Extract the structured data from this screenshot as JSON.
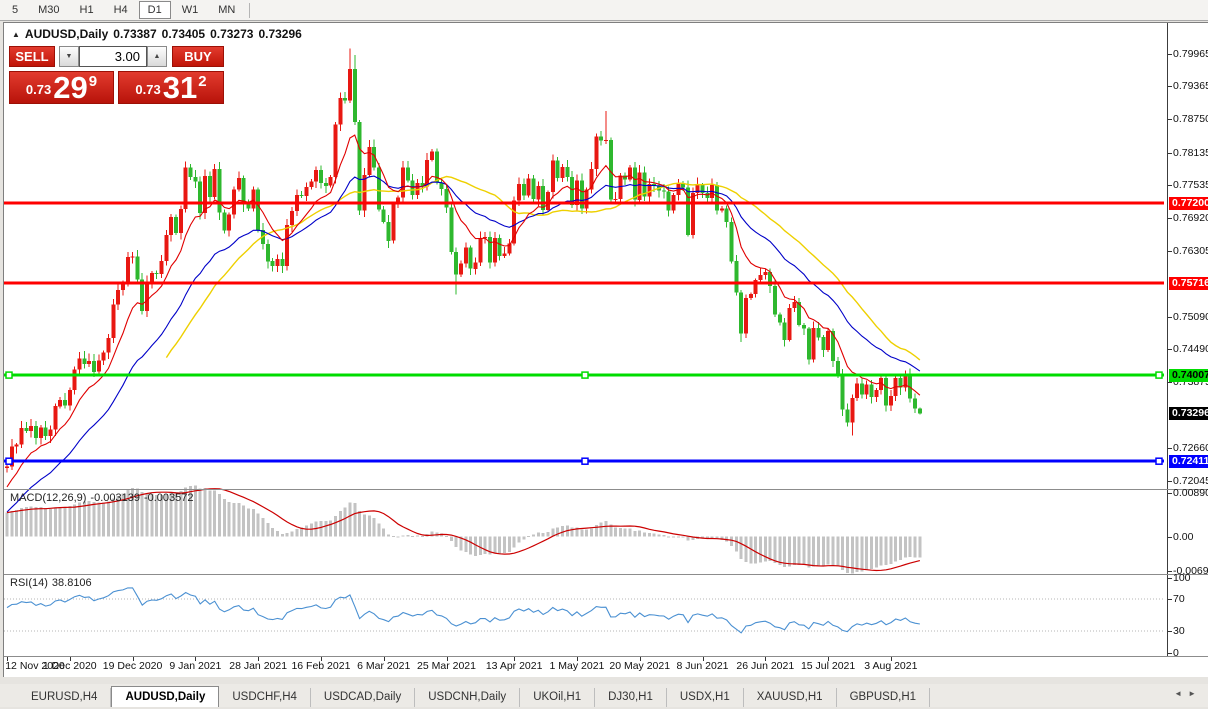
{
  "toolbar": {
    "timeframes": [
      "5",
      "M30",
      "H1",
      "H4",
      "D1",
      "W1",
      "MN"
    ],
    "active": "D1"
  },
  "header": {
    "collapse_icon": "▲",
    "symbol": "AUDUSD,Daily",
    "open": "0.73387",
    "high": "0.73405",
    "low": "0.73273",
    "close": "0.73296"
  },
  "trade_panel": {
    "sell_label": "SELL",
    "buy_label": "BUY",
    "volume": "3.00",
    "sell_price": {
      "prefix": "0.73",
      "big": "29",
      "sup": "9"
    },
    "buy_price": {
      "prefix": "0.73",
      "big": "31",
      "sup": "2"
    }
  },
  "chart_data": [
    {
      "name": "main-price",
      "type": "candlestick",
      "symbol": "AUDUSD",
      "timeframe": "Daily",
      "ylim": [
        0.71932,
        0.80539
      ],
      "bull_color": "#e81812",
      "bear_color": "#2eb82e",
      "y_axis_ticks": [
        "0.79965",
        "0.79365",
        "0.78750",
        "0.78135",
        "0.77535",
        "0.76920",
        "0.76305",
        "0.75090",
        "0.74490",
        "0.73875",
        "0.72660",
        "0.72045"
      ],
      "x_ticks": [
        {
          "label": "12 Nov 2020",
          "i": 0
        },
        {
          "label": "1 Dec 2020",
          "i": 13
        },
        {
          "label": "19 Dec 2020",
          "i": 26
        },
        {
          "label": "9 Jan 2021",
          "i": 39
        },
        {
          "label": "28 Jan 2021",
          "i": 52
        },
        {
          "label": "16 Feb 2021",
          "i": 65
        },
        {
          "label": "6 Mar 2021",
          "i": 78
        },
        {
          "label": "25 Mar 2021",
          "i": 91
        },
        {
          "label": "13 Apr 2021",
          "i": 105
        },
        {
          "label": "1 May 2021",
          "i": 118
        },
        {
          "label": "20 May 2021",
          "i": 131
        },
        {
          "label": "8 Jun 2021",
          "i": 144
        },
        {
          "label": "26 Jun 2021",
          "i": 157
        },
        {
          "label": "15 Jul 2021",
          "i": 170
        },
        {
          "label": "3 Aug 2021",
          "i": 183
        }
      ],
      "first_open": 0.7228,
      "closes": [
        0.7231,
        0.7268,
        0.7272,
        0.7303,
        0.7297,
        0.7306,
        0.7284,
        0.7304,
        0.7288,
        0.73,
        0.7343,
        0.7355,
        0.7344,
        0.7373,
        0.7411,
        0.7432,
        0.7421,
        0.7427,
        0.7407,
        0.7428,
        0.7443,
        0.747,
        0.7532,
        0.7559,
        0.7572,
        0.762,
        0.7621,
        0.7578,
        0.752,
        0.7572,
        0.759,
        0.7588,
        0.7612,
        0.7661,
        0.7694,
        0.7664,
        0.7709,
        0.7786,
        0.7768,
        0.776,
        0.7701,
        0.777,
        0.7731,
        0.7783,
        0.7702,
        0.7669,
        0.7699,
        0.7745,
        0.7766,
        0.7717,
        0.771,
        0.7745,
        0.767,
        0.7644,
        0.7612,
        0.7603,
        0.7616,
        0.7603,
        0.7679,
        0.7705,
        0.7735,
        0.7733,
        0.775,
        0.776,
        0.7781,
        0.7757,
        0.7752,
        0.7768,
        0.7866,
        0.7915,
        0.791,
        0.7969,
        0.787,
        0.7706,
        0.7772,
        0.7824,
        0.7786,
        0.7708,
        0.7685,
        0.765,
        0.7717,
        0.773,
        0.7786,
        0.7762,
        0.7735,
        0.7757,
        0.7751,
        0.78,
        0.7816,
        0.7758,
        0.7746,
        0.7712,
        0.7629,
        0.7587,
        0.7608,
        0.7637,
        0.7598,
        0.761,
        0.7655,
        0.7657,
        0.761,
        0.7655,
        0.7622,
        0.7626,
        0.7645,
        0.7725,
        0.7755,
        0.7734,
        0.7765,
        0.7727,
        0.7752,
        0.7707,
        0.774,
        0.7799,
        0.7766,
        0.7787,
        0.7768,
        0.7716,
        0.7762,
        0.771,
        0.7745,
        0.7783,
        0.7843,
        0.7836,
        0.7837,
        0.7726,
        0.7727,
        0.7771,
        0.7764,
        0.7786,
        0.7726,
        0.7777,
        0.7732,
        0.7755,
        0.7752,
        0.7743,
        0.7741,
        0.7706,
        0.7735,
        0.7755,
        0.7749,
        0.7661,
        0.7739,
        0.7754,
        0.7739,
        0.7729,
        0.7753,
        0.7706,
        0.771,
        0.7685,
        0.7612,
        0.7554,
        0.7478,
        0.7544,
        0.7551,
        0.7577,
        0.7586,
        0.7592,
        0.7566,
        0.7513,
        0.7498,
        0.7466,
        0.7525,
        0.7536,
        0.7494,
        0.7487,
        0.743,
        0.7488,
        0.7471,
        0.7447,
        0.7483,
        0.7427,
        0.7401,
        0.7337,
        0.7313,
        0.7358,
        0.7385,
        0.7365,
        0.7383,
        0.736,
        0.7373,
        0.7395,
        0.7344,
        0.7362,
        0.7395,
        0.7378,
        0.74,
        0.7357,
        0.7339,
        0.73296
      ],
      "wick_overrides": {
        "71": [
          0.8007,
          null
        ],
        "72": [
          0.7995,
          null
        ],
        "93": [
          null,
          0.755
        ],
        "124": [
          0.7891,
          null
        ],
        "152": [
          null,
          0.7462
        ],
        "174": [
          null,
          0.7305
        ],
        "175": [
          null,
          0.7289
        ],
        "186": [
          0.7409,
          null
        ],
        "189": [
          0.73405,
          0.73273
        ]
      },
      "moving_averages": [
        {
          "kind": "ema",
          "period": 10,
          "color": "#e00000",
          "seed": 0.7185
        },
        {
          "kind": "ema",
          "period": 26,
          "color": "#0000c8",
          "seed": 0.714
        },
        {
          "kind": "sma",
          "period": 34,
          "color": "#eed000"
        }
      ],
      "hlines": [
        {
          "price": 0.772,
          "label": "0.77200",
          "color": "#ff0000",
          "text_color": "#ffffff",
          "selected": false
        },
        {
          "price": 0.75716,
          "label": "0.75716",
          "color": "#ff0000",
          "text_color": "#ffffff",
          "selected": false
        },
        {
          "price": 0.74007,
          "label": "0.74007",
          "color": "#00dc00",
          "text_color": "#000000",
          "selected": true
        },
        {
          "price": 0.72411,
          "label": "0.72411",
          "color": "#0000ff",
          "text_color": "#ffffff",
          "selected": true
        }
      ],
      "current_price_tag": {
        "price": 0.73296,
        "label": "0.73296",
        "bg": "#000000",
        "text_color": "#ffffff"
      }
    },
    {
      "name": "macd",
      "type": "bar+line",
      "label": "MACD(12,26,9)",
      "value_main": "-0.003139",
      "value_signal": "-0.003572",
      "params": {
        "fast": 12,
        "slow": 26,
        "signal": 9
      },
      "seeds": {
        "fast": 0.718,
        "slow": 0.7135
      },
      "ylim": [
        -0.006977,
        0.008903
      ],
      "y_axis_ticks": [
        "0.008903",
        "0.00",
        "-0.006977"
      ],
      "hist_color": "#c3c3c3",
      "signal_color": "#cc0000",
      "source": "derived from main-price closes"
    },
    {
      "name": "rsi",
      "type": "line",
      "label": "RSI(14)",
      "value": "38.8106",
      "period": 14,
      "levels": [
        30,
        70
      ],
      "ylim": [
        0,
        100
      ],
      "y_axis_ticks": [
        "100",
        "70",
        "30",
        "0"
      ],
      "line_color": "#4a90d2",
      "level_line_color": "#b4b4b4",
      "seeds": {
        "avg_gain": 0.0016,
        "avg_loss": 0.0011
      },
      "source": "derived from main-price closes"
    }
  ],
  "tabs": {
    "items": [
      "EURUSD,H4",
      "AUDUSD,Daily",
      "USDCHF,H4",
      "USDCAD,Daily",
      "USDCNH,Daily",
      "UKOil,H1",
      "DJ30,H1",
      "USDX,H1",
      "XAUUSD,H1",
      "GBPUSD,H1"
    ],
    "active": "AUDUSD,Daily"
  },
  "nav_arrows": {
    "left": "◄",
    "right": "►"
  }
}
